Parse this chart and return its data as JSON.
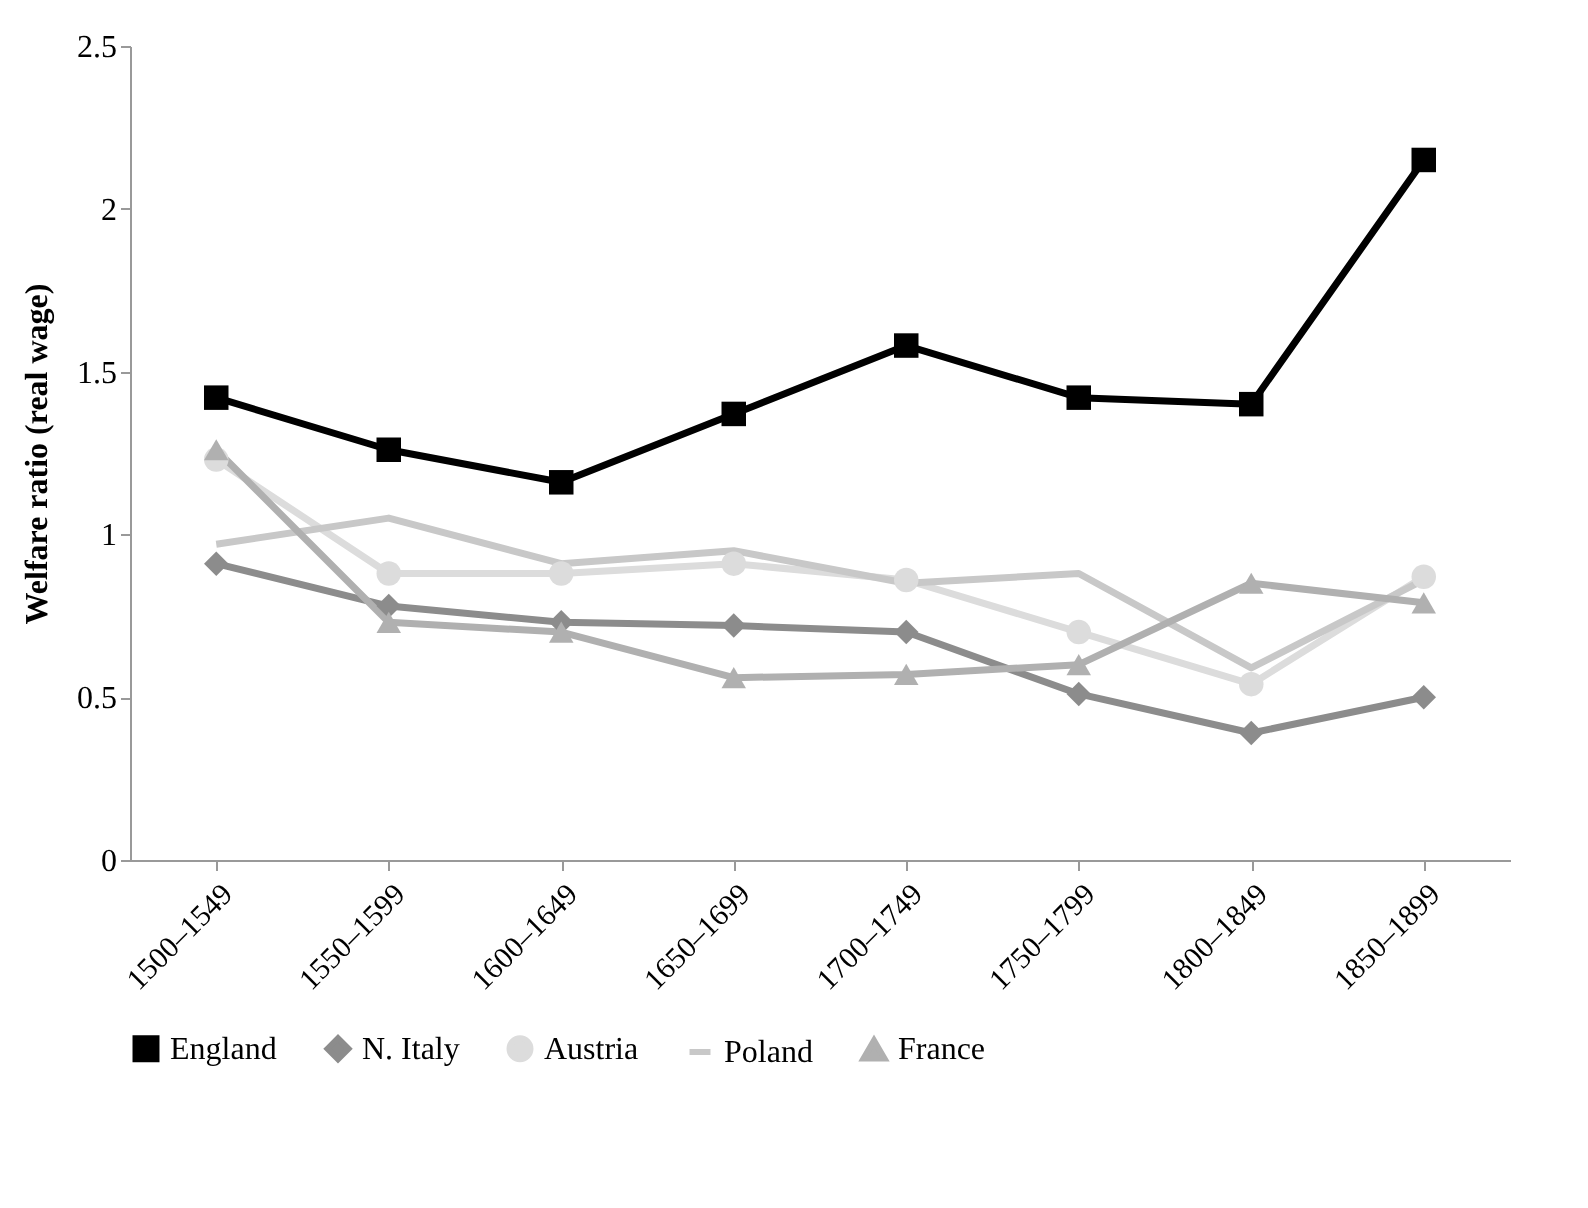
{
  "chart_data": {
    "type": "line",
    "ylabel": "Welfare ratio (real wage)",
    "categories": [
      "1500–1549",
      "1550–1599",
      "1600–1649",
      "1650–1699",
      "1700–1749",
      "1750–1799",
      "1800–1849",
      "1850–1899"
    ],
    "series": [
      {
        "name": "England",
        "color": "#000000",
        "marker": "square",
        "values": [
          1.42,
          1.26,
          1.16,
          1.37,
          1.58,
          1.42,
          1.4,
          2.15
        ]
      },
      {
        "name": "N. Italy",
        "color": "#8c8c8c",
        "marker": "diamond",
        "values": [
          0.91,
          0.78,
          0.73,
          0.72,
          0.7,
          0.51,
          0.39,
          0.5
        ]
      },
      {
        "name": "Austria",
        "color": "#dcdcdc",
        "marker": "circle",
        "values": [
          1.23,
          0.88,
          0.88,
          0.91,
          0.86,
          0.7,
          0.54,
          0.87
        ]
      },
      {
        "name": "Poland",
        "color": "#c8c8c8",
        "marker": "none",
        "values": [
          0.97,
          1.05,
          0.91,
          0.95,
          0.85,
          0.88,
          0.59,
          0.86
        ]
      },
      {
        "name": "France",
        "color": "#b0b0b0",
        "marker": "triangle",
        "values": [
          1.26,
          0.73,
          0.7,
          0.56,
          0.57,
          0.6,
          0.85,
          0.79
        ]
      }
    ],
    "ylim": [
      0,
      2.5
    ],
    "yticks": [
      0,
      0.5,
      1,
      1.5,
      2,
      2.5
    ],
    "grid": false,
    "legend": "bottom"
  }
}
